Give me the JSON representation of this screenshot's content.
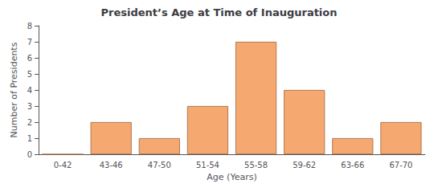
{
  "chart_data": {
    "type": "bar",
    "title": "President’s Age at Time of Inauguration",
    "xlabel": "Age (Years)",
    "ylabel": "Number of Presidents",
    "categories": [
      "0-42",
      "43-46",
      "47-50",
      "51-54",
      "55-58",
      "59-62",
      "63-66",
      "67-70"
    ],
    "values": [
      0,
      2,
      1,
      3,
      7,
      4,
      1,
      2
    ],
    "color": "#F5A870",
    "ylim": [
      0,
      8
    ],
    "yticks": [
      0,
      1,
      2,
      3,
      4,
      5,
      6,
      7,
      8
    ],
    "grid": false
  }
}
